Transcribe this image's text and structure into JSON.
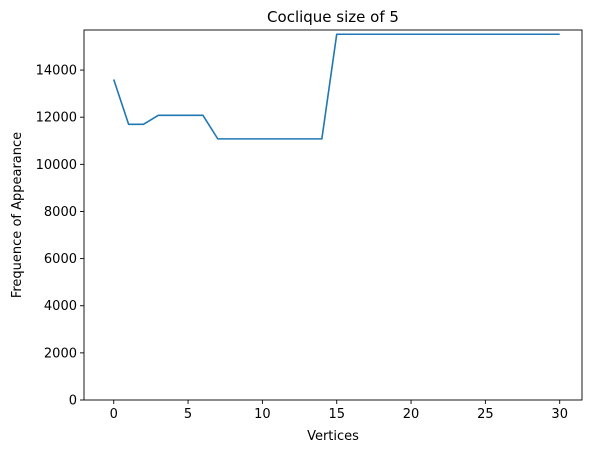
{
  "chart_data": {
    "type": "line",
    "title": "Coclique size of 5",
    "xlabel": "Vertices",
    "ylabel": "Frequence of Appearance",
    "xlim": [
      -2,
      31.5
    ],
    "ylim": [
      0,
      15700
    ],
    "x_ticks": [
      0,
      5,
      10,
      15,
      20,
      25,
      30
    ],
    "y_ticks": [
      0,
      2000,
      4000,
      6000,
      8000,
      10000,
      12000,
      14000
    ],
    "grid": false,
    "series": [
      {
        "color": "#1f77b4",
        "x": [
          0,
          1,
          2,
          3,
          4,
          5,
          6,
          7,
          8,
          9,
          10,
          11,
          12,
          13,
          14,
          15,
          16,
          17,
          18,
          19,
          20,
          21,
          22,
          23,
          24,
          25,
          26,
          27,
          28,
          29,
          30
        ],
        "y": [
          13600,
          11700,
          11700,
          12080,
          12080,
          12080,
          12080,
          11080,
          11080,
          11080,
          11080,
          11080,
          11080,
          11080,
          11080,
          15520,
          15520,
          15520,
          15520,
          15520,
          15520,
          15520,
          15520,
          15520,
          15520,
          15520,
          15520,
          15520,
          15520,
          15520,
          15520
        ]
      }
    ]
  }
}
